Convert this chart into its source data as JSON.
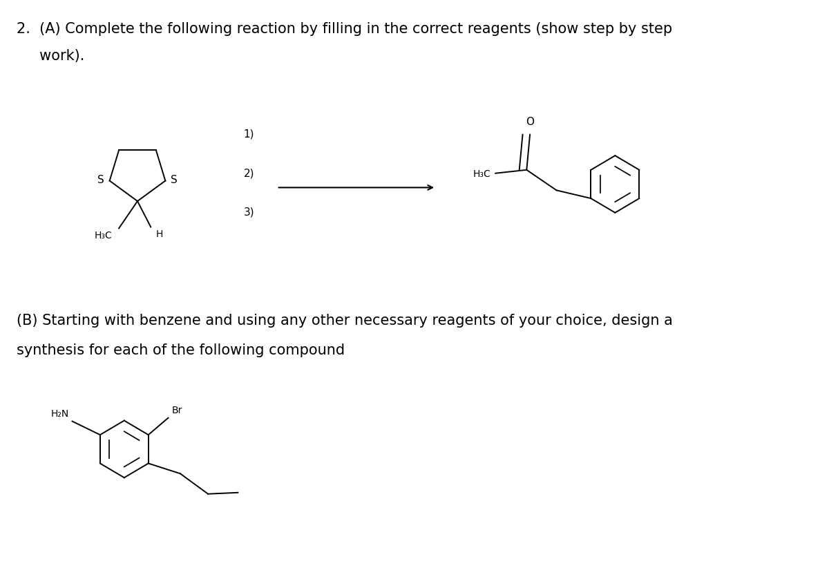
{
  "bg_color": "#ffffff",
  "text_color": "#000000",
  "title_line1": "2.  (A) Complete the following reaction by filling in the correct reagents (show step by step",
  "title_line2": "     work).",
  "part_b_line1": "(B) Starting with benzene and using any other necessary reagents of your choice, design a",
  "part_b_line2": "synthesis for each of the following compound",
  "font_size_main": 15,
  "font_size_label": 11,
  "font_size_chem": 10
}
